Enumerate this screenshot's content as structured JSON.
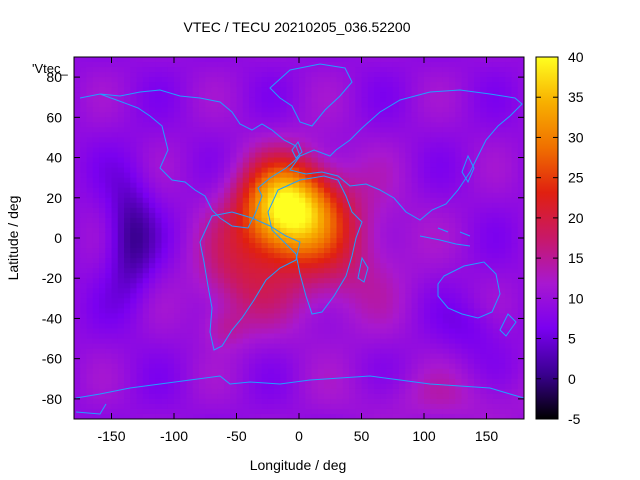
{
  "chart_data": {
    "type": "heatmap",
    "title": "VTEC / TECU 20210205_036.52200",
    "xlabel": "Longitude / deg",
    "ylabel": "Latitude / deg",
    "xlim": [
      -180,
      180
    ],
    "ylim": [
      -90,
      90
    ],
    "x_ticks": [
      -150,
      -100,
      -50,
      0,
      50,
      100,
      150
    ],
    "y_ticks": [
      -80,
      -60,
      -40,
      -20,
      0,
      20,
      40,
      60,
      80
    ],
    "color_range": [
      -5,
      40
    ],
    "colorbar_ticks": [
      -5,
      0,
      5,
      10,
      15,
      20,
      25,
      30,
      35,
      40
    ],
    "legend_label": "'Vtec_",
    "colormap": [
      "#000000",
      "#3a0090",
      "#7a00f0",
      "#a818d0",
      "#c81868",
      "#e02010",
      "#f07000",
      "#f8b000",
      "#ffff20"
    ],
    "coastline_color": "#20a0ff",
    "features": {
      "background_tec": 9,
      "anomaly_peak": {
        "lon": -10,
        "lat": 15,
        "value": 38
      },
      "anomaly_south": {
        "lon": -50,
        "lat": -20,
        "value": 22
      },
      "trough_pacific": {
        "lon": -135,
        "lat": 0,
        "value": 1
      },
      "trough_australia": {
        "lon": 140,
        "lat": -45,
        "value": 6
      }
    }
  }
}
